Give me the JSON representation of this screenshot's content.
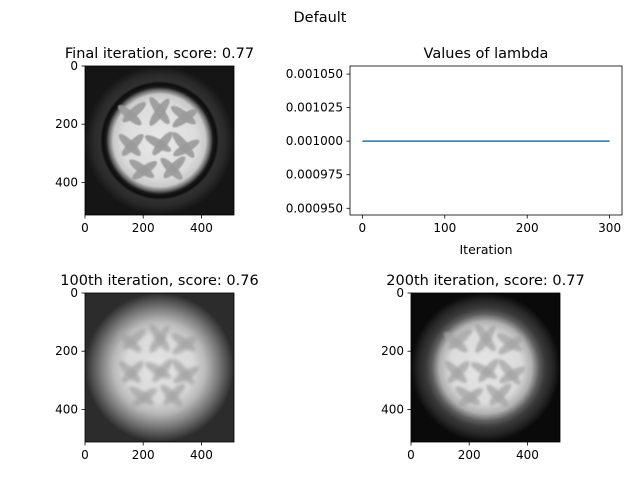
{
  "figure": {
    "suptitle": "Default"
  },
  "chart_data": [
    {
      "type": "heatmap",
      "title": "Final iteration, score: 0.77",
      "colormap": "gray",
      "extent": [
        0,
        512,
        512,
        0
      ],
      "x_ticks": [
        0,
        200,
        400
      ],
      "y_ticks": [
        0,
        200,
        400
      ],
      "x_tick_labels": [
        "0",
        "200",
        "400"
      ],
      "y_tick_labels": [
        "0",
        "200",
        "400"
      ],
      "score": 0.77
    },
    {
      "type": "line",
      "title": "Values of lambda",
      "xlabel": "Iteration",
      "ylabel": "",
      "xlim": [
        -15,
        315
      ],
      "ylim": [
        0.000945,
        0.001056
      ],
      "x_ticks": [
        0,
        100,
        200,
        300
      ],
      "x_tick_labels": [
        "0",
        "100",
        "200",
        "300"
      ],
      "y_ticks": [
        0.00095,
        0.000975,
        0.001,
        0.001025,
        0.00105
      ],
      "y_tick_labels": [
        "0.000950",
        "0.000975",
        "0.001000",
        "0.001025",
        "0.001050"
      ],
      "series": [
        {
          "color": "#1f77b4",
          "x": [
            0,
            300
          ],
          "y": [
            0.001,
            0.001
          ]
        }
      ],
      "grid": false
    },
    {
      "type": "heatmap",
      "title": "100th iteration, score: 0.76",
      "colormap": "gray",
      "extent": [
        0,
        512,
        512,
        0
      ],
      "x_ticks": [
        0,
        200,
        400
      ],
      "y_ticks": [
        0,
        200,
        400
      ],
      "x_tick_labels": [
        "0",
        "200",
        "400"
      ],
      "y_tick_labels": [
        "0",
        "200",
        "400"
      ],
      "score": 0.76
    },
    {
      "type": "heatmap",
      "title": "200th iteration, score: 0.77",
      "colormap": "gray",
      "extent": [
        0,
        512,
        512,
        0
      ],
      "x_ticks": [
        0,
        200,
        400
      ],
      "y_ticks": [
        0,
        200,
        400
      ],
      "x_tick_labels": [
        "0",
        "200",
        "400"
      ],
      "y_tick_labels": [
        "0",
        "200",
        "400"
      ],
      "score": 0.77
    }
  ]
}
